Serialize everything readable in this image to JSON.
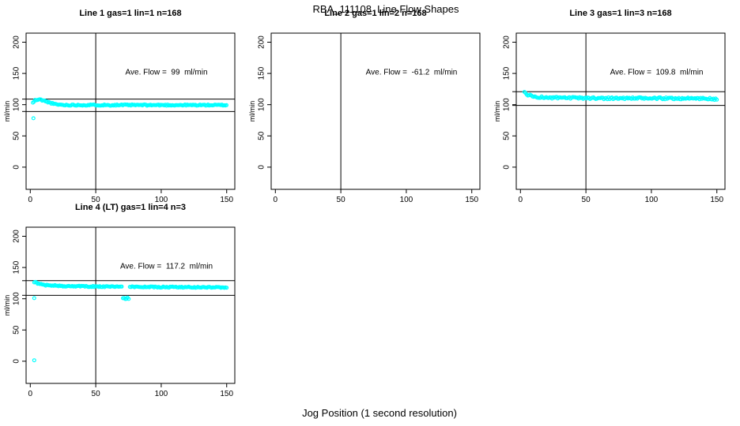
{
  "page": {
    "title": "RBA_111108  Line Flow Shapes",
    "xlabel": "Jog Position (1 second resolution)",
    "background": "#ffffff",
    "marker_color": "#00ffff",
    "line_color": "#000000"
  },
  "chart_data": [
    {
      "type": "scatter",
      "title": "Line 1 gas=1 lin=1 n=168",
      "n": 168,
      "ave_flow_ml_min": 99,
      "ave_flow_label": "Ave. Flow =  99  ml/min",
      "ylabel": "ml/min",
      "x_ticks": [
        0,
        50,
        100,
        150
      ],
      "y_ticks": [
        0,
        50,
        100,
        150,
        200
      ],
      "xlim": [
        -3.2,
        156.2
      ],
      "ylim": [
        -35.5,
        214.5
      ],
      "vline_x": 50,
      "hlines": [
        108.9,
        89.1
      ],
      "annotation_at": [
        104,
        152
      ],
      "series": {
        "x_start": 2,
        "x_end": 150,
        "x_step": 0.88,
        "jitter": 1.0,
        "seed": 11,
        "profile": [
          [
            2,
            103
          ],
          [
            4,
            107.5
          ],
          [
            8,
            108
          ],
          [
            13,
            104.5
          ],
          [
            19,
            100.5
          ],
          [
            26,
            99.4
          ],
          [
            150,
            99.3
          ]
        ]
      },
      "dropouts": [],
      "outliers": [
        [
          2.4,
          78.3
        ]
      ]
    },
    {
      "type": "scatter",
      "title": "Line 2 gas=1 lin=2 n=168",
      "n": 168,
      "ave_flow_ml_min": -61.2,
      "ave_flow_label": "Ave. Flow =  -61.2  ml/min",
      "ylabel": "ml/min",
      "x_ticks": [
        0,
        50,
        100,
        150
      ],
      "y_ticks": [
        0,
        50,
        100,
        150,
        200
      ],
      "xlim": [
        -3.2,
        156.2
      ],
      "ylim": [
        -35.5,
        214.5
      ],
      "vline_x": 50,
      "hlines": [],
      "annotation_at": [
        104,
        152
      ],
      "series": null,
      "dropouts": [],
      "outliers": []
    },
    {
      "type": "scatter",
      "title": "Line 3 gas=1 lin=3 n=168",
      "n": 168,
      "ave_flow_ml_min": 109.8,
      "ave_flow_label": "Ave. Flow =  109.8  ml/min",
      "ylabel": "ml/min",
      "x_ticks": [
        0,
        50,
        100,
        150
      ],
      "y_ticks": [
        0,
        50,
        100,
        150,
        200
      ],
      "xlim": [
        -3.2,
        156.2
      ],
      "ylim": [
        -35.5,
        214.5
      ],
      "vline_x": 50,
      "hlines": [
        120.8,
        98.8
      ],
      "annotation_at": [
        104,
        152
      ],
      "series": {
        "x_start": 3,
        "x_end": 150,
        "x_step": 0.88,
        "jitter": 1.5,
        "seed": 23,
        "profile": [
          [
            3,
            119.5
          ],
          [
            6,
            115.5
          ],
          [
            11,
            112.5
          ],
          [
            22,
            111
          ],
          [
            60,
            110.4
          ],
          [
            140,
            109.9
          ],
          [
            150,
            108.8
          ]
        ]
      },
      "dropouts": [],
      "outliers": []
    },
    {
      "type": "scatter",
      "title": "Line 4 (LT) gas=1 lin=4 n=3",
      "n": 3,
      "ave_flow_ml_min": 117.2,
      "ave_flow_label": "Ave. Flow =  117.2  ml/min",
      "ylabel": "ml/min",
      "x_ticks": [
        0,
        50,
        100,
        150
      ],
      "y_ticks": [
        0,
        50,
        100,
        150,
        200
      ],
      "xlim": [
        -3.2,
        156.2
      ],
      "ylim": [
        -35.5,
        214.5
      ],
      "vline_x": 50,
      "hlines": [
        128.9,
        105.5
      ],
      "annotation_at": [
        104,
        152
      ],
      "series": {
        "x_start": 3,
        "x_end": 150,
        "x_step": 0.88,
        "jitter": 0.9,
        "seed": 37,
        "profile": [
          [
            3,
            127
          ],
          [
            6,
            124
          ],
          [
            12,
            121.8
          ],
          [
            25,
            120.2
          ],
          [
            70,
            119
          ],
          [
            80,
            118.9
          ],
          [
            150,
            118.2
          ]
        ]
      },
      "dropouts": [
        {
          "x0": 70.5,
          "x1": 76,
          "y": 100.8,
          "jitter": 1.2
        }
      ],
      "outliers": [
        [
          3,
          101
        ],
        [
          3,
          1.5
        ]
      ]
    }
  ]
}
